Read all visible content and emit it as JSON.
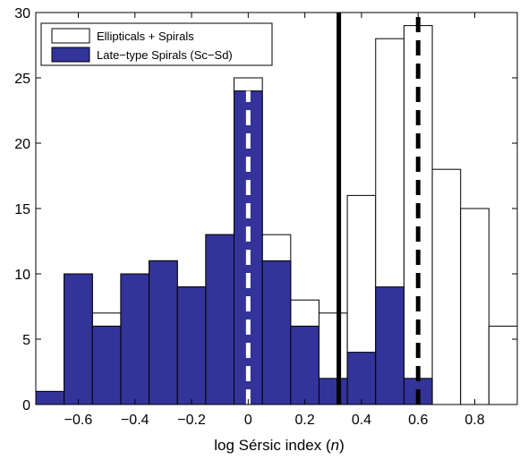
{
  "chart_data": {
    "type": "bar",
    "title": "",
    "xlabel_prefix": "log Sérsic index (",
    "xlabel_var": "n",
    "xlabel_suffix": ")",
    "ylabel": "",
    "xlim": [
      -0.75,
      0.95
    ],
    "ylim": [
      0,
      30
    ],
    "bin_width": 0.1,
    "xticks": [
      -0.6,
      -0.4,
      -0.2,
      0,
      0.2,
      0.4,
      0.6,
      0.8
    ],
    "xtick_labels": [
      "−0.6",
      "−0.4",
      "−0.2",
      "0",
      "0.2",
      "0.4",
      "0.6",
      "0.8"
    ],
    "yticks": [
      0,
      5,
      10,
      15,
      20,
      25,
      30
    ],
    "ytick_labels": [
      "0",
      "5",
      "10",
      "15",
      "20",
      "25",
      "30"
    ],
    "grid": false,
    "legend_position": "top-left",
    "series": [
      {
        "name": "Ellipticals + Spirals",
        "color": "#ffffff",
        "bin_centers": [
          -0.7,
          -0.6,
          -0.5,
          -0.4,
          -0.3,
          -0.2,
          -0.1,
          0.0,
          0.1,
          0.2,
          0.3,
          0.4,
          0.5,
          0.6,
          0.7,
          0.8,
          0.9
        ],
        "values": [
          1,
          10,
          7,
          10,
          11,
          9,
          13,
          25,
          13,
          8,
          7,
          16,
          28,
          29,
          18,
          15,
          6
        ]
      },
      {
        "name": "Late−type Spirals (Sc−Sd)",
        "color": "#333399",
        "bin_centers": [
          -0.7,
          -0.6,
          -0.5,
          -0.4,
          -0.3,
          -0.2,
          -0.1,
          0.0,
          0.1,
          0.2,
          0.3,
          0.4,
          0.5,
          0.6
        ],
        "values": [
          1,
          10,
          6,
          10,
          11,
          9,
          13,
          24,
          11,
          6,
          2,
          4,
          9,
          2
        ]
      }
    ],
    "reference_lines": [
      {
        "x": 0.0,
        "style": "dashed",
        "color": "#ffffff",
        "ymax": 24
      },
      {
        "x": 0.32,
        "style": "solid",
        "color": "#000000",
        "ymax": 30
      },
      {
        "x": 0.6,
        "style": "dashed",
        "color": "#000000",
        "ymax": 30
      }
    ]
  }
}
